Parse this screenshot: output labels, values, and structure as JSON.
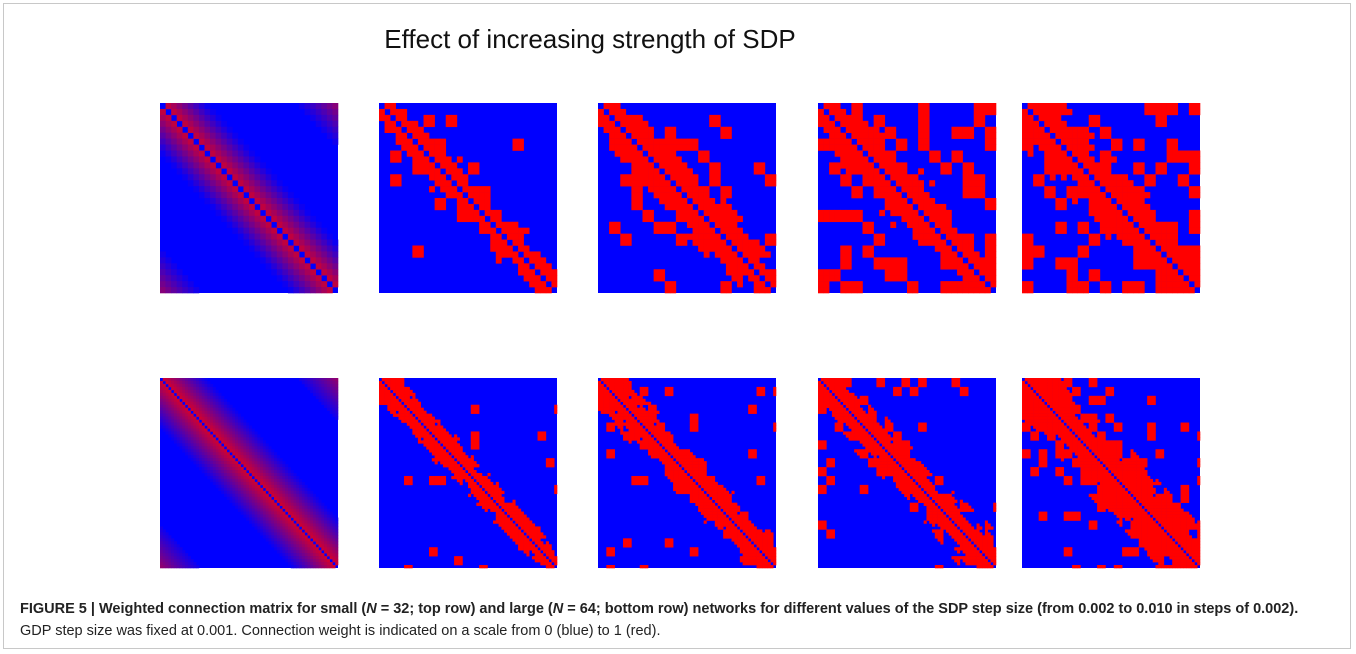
{
  "header": {
    "title": "Effect of increasing strength of SDP"
  },
  "caption": {
    "label": "FIGURE 5 |",
    "bold_parts": [
      "Weighted connection matrix for small (",
      "N",
      " = 32; top row) and large (",
      "N",
      " = 64; bottom row) networks for different values of the SDP step size (from 0.002 to 0.010 in steps of 0.002)."
    ],
    "text": "GDP step size was fixed at 0.001. Connection weight is indicated on a scale from 0 (blue) to 1 (red)."
  }
}
